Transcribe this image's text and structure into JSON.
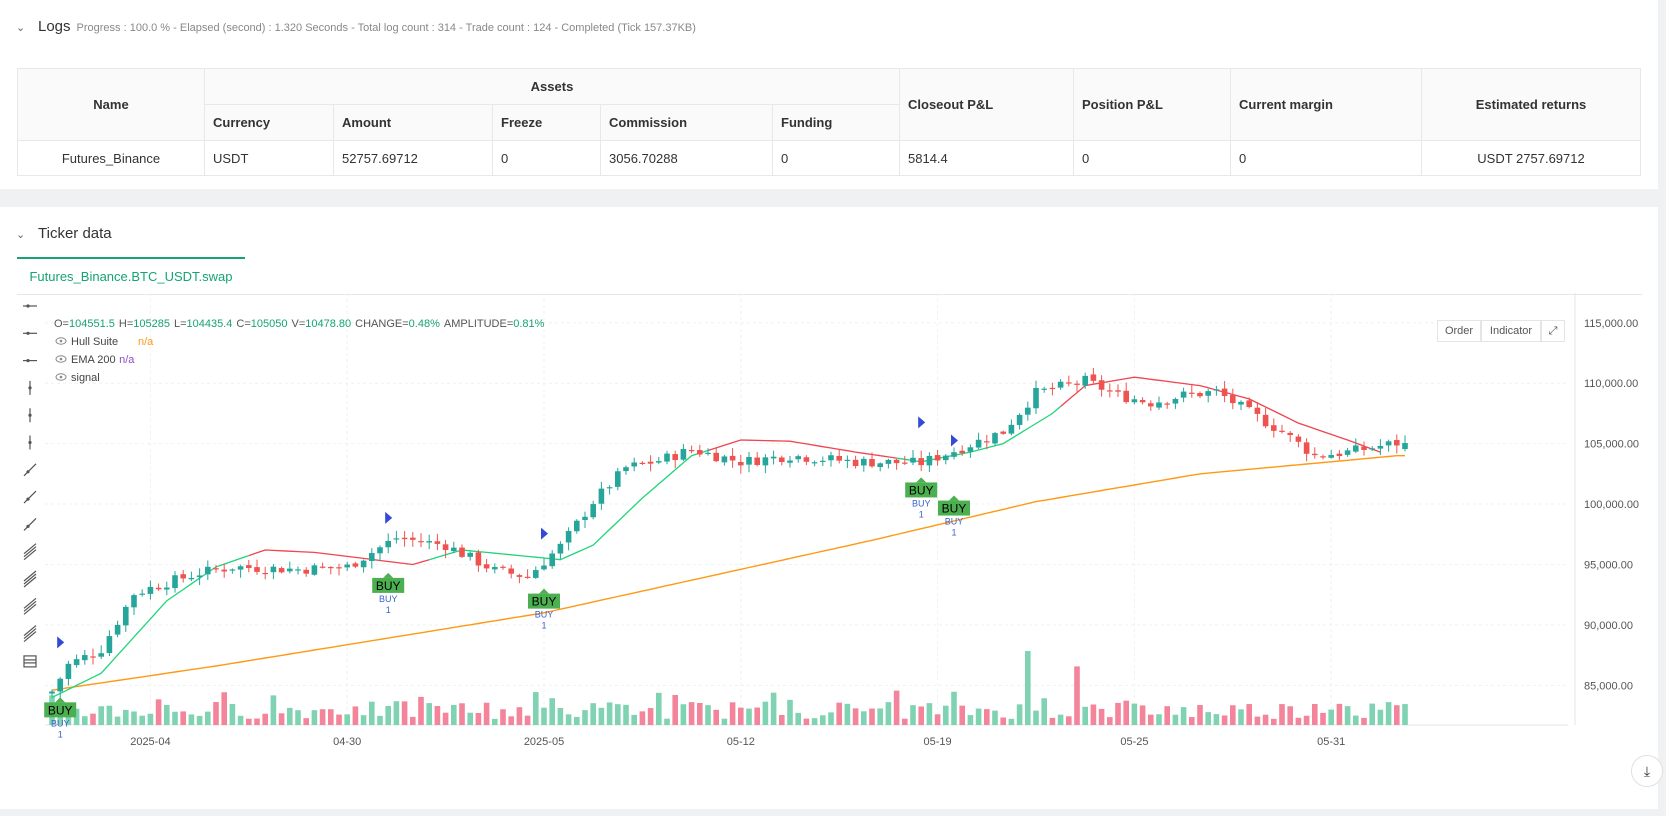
{
  "logs": {
    "title": "Logs",
    "summary": "Progress : 100.0 % - Elapsed (second) : 1.320   Seconds - Total log count : 314 - Trade count : 124 - Completed (Tick 157.37KB)"
  },
  "assets_table": {
    "headers": {
      "name": "Name",
      "assets": "Assets",
      "currency": "Currency",
      "amount": "Amount",
      "freeze": "Freeze",
      "commission": "Commission",
      "funding": "Funding",
      "closeout_pnl": "Closeout P&L",
      "position_pnl": "Position P&L",
      "current_margin": "Current margin",
      "estimated_returns": "Estimated returns"
    },
    "row": {
      "name": "Futures_Binance",
      "currency": "USDT",
      "amount": "52757.69712",
      "freeze": "0",
      "commission": "3056.70288",
      "funding": "0",
      "closeout_pnl": "5814.4",
      "position_pnl": "0",
      "current_margin": "0",
      "estimated_returns": "USDT 2757.69712"
    }
  },
  "ticker": {
    "title": "Ticker data",
    "tab": "Futures_Binance.BTC_USDT.swap",
    "order_button": "Order",
    "indicator_button": "Indicator"
  },
  "colors": {
    "accent": "#16a375",
    "up": "#26a69a",
    "down": "#ef5350",
    "hull_up": "#1fd47a",
    "hull_down": "#f0444e",
    "ema": "#ff9914",
    "volume_up": "#7fd3b2",
    "volume_down": "#f4849a",
    "buy_label": "#4caf50",
    "marker": "#3449d6"
  },
  "icons": [
    "expand-icon",
    "chevron-down-icon",
    "eye-icon",
    "scroll-down-icon",
    "line-tool-icon",
    "ray-tool-icon",
    "extended-line-icon",
    "vertical-line-icon",
    "vertical-ray-icon",
    "vertical-segment-icon",
    "trend-line-icon",
    "trend-ray-icon",
    "trend-segment-icon",
    "fib-icon",
    "parallel-channel-icon",
    "pitchfork-icon",
    "horizontal-lines-icon",
    "trash-icon"
  ],
  "chart_data": {
    "type": "candlestick",
    "symbol": "Futures_Binance.BTC_USDT.swap",
    "ohlc_readout": {
      "o_label": "O=",
      "o": "104551.5",
      "h_label": "H=",
      "h": "105285",
      "l_label": "L=",
      "l": "104435.4",
      "c_label": "C=",
      "c": "105050",
      "v_label": "V=",
      "v": "10478.80",
      "change_label": "CHANGE=",
      "change": "0.48%",
      "amplitude_label": "AMPLITUDE=",
      "amplitude": "0.81%"
    },
    "legend": [
      {
        "name": "Hull Suite",
        "value": "n/a"
      },
      {
        "name": "EMA 200",
        "value": "n/a"
      },
      {
        "name": "signal",
        "value": ""
      }
    ],
    "y_axis": {
      "range": [
        81800,
        117300
      ],
      "ticks": [
        85000,
        90000,
        95000,
        100000,
        105000,
        110000,
        115000
      ],
      "tick_labels": [
        "85,000.00",
        "90,000.00",
        "95,000.00",
        "100,000.00",
        "105,000.00",
        "110,000.00",
        "115,000.00"
      ]
    },
    "x_axis": {
      "bar_count": 166,
      "tick_labels": [
        {
          "bar": 12,
          "label": "2025-04"
        },
        {
          "bar": 36,
          "label": "04-30"
        },
        {
          "bar": 60,
          "label": "2025-05"
        },
        {
          "bar": 84,
          "label": "05-12"
        },
        {
          "bar": 108,
          "label": "05-19"
        },
        {
          "bar": 132,
          "label": "05-25"
        },
        {
          "bar": 156,
          "label": "05-31"
        }
      ]
    },
    "close_anchors": [
      [
        0,
        84500
      ],
      [
        2,
        86700
      ],
      [
        6,
        88000
      ],
      [
        10,
        92600
      ],
      [
        14,
        93500
      ],
      [
        18,
        94300
      ],
      [
        22,
        94800
      ],
      [
        30,
        94600
      ],
      [
        36,
        94800
      ],
      [
        42,
        97200
      ],
      [
        48,
        96600
      ],
      [
        54,
        94500
      ],
      [
        58,
        94000
      ],
      [
        62,
        96500
      ],
      [
        66,
        100200
      ],
      [
        70,
        103000
      ],
      [
        74,
        103600
      ],
      [
        78,
        104500
      ],
      [
        84,
        103500
      ],
      [
        90,
        104000
      ],
      [
        98,
        103500
      ],
      [
        106,
        103400
      ],
      [
        110,
        104400
      ],
      [
        116,
        106000
      ],
      [
        120,
        109200
      ],
      [
        126,
        110200
      ],
      [
        130,
        109000
      ],
      [
        134,
        108400
      ],
      [
        138,
        109000
      ],
      [
        142,
        109300
      ],
      [
        146,
        107600
      ],
      [
        150,
        106000
      ],
      [
        154,
        104000
      ],
      [
        158,
        104300
      ],
      [
        164,
        105050
      ]
    ],
    "hull_anchors": [
      [
        0,
        84000
      ],
      [
        6,
        86000
      ],
      [
        14,
        92000
      ],
      [
        20,
        94800
      ],
      [
        26,
        96200
      ],
      [
        32,
        96000
      ],
      [
        38,
        95500
      ],
      [
        44,
        95000
      ],
      [
        50,
        96200
      ],
      [
        56,
        95800
      ],
      [
        62,
        95400
      ],
      [
        66,
        96600
      ],
      [
        72,
        100500
      ],
      [
        78,
        104000
      ],
      [
        84,
        105300
      ],
      [
        90,
        105200
      ],
      [
        98,
        104300
      ],
      [
        106,
        103500
      ],
      [
        112,
        104300
      ],
      [
        116,
        105000
      ],
      [
        122,
        107500
      ],
      [
        126,
        109800
      ],
      [
        132,
        110500
      ],
      [
        140,
        109800
      ],
      [
        146,
        108700
      ],
      [
        152,
        106700
      ],
      [
        158,
        105300
      ],
      [
        162,
        104300
      ]
    ],
    "ema_anchors": [
      [
        0,
        84600
      ],
      [
        20,
        86600
      ],
      [
        40,
        88800
      ],
      [
        60,
        91000
      ],
      [
        80,
        94000
      ],
      [
        100,
        97000
      ],
      [
        120,
        100200
      ],
      [
        140,
        102500
      ],
      [
        164,
        104000
      ]
    ],
    "hull_color_down_from": [
      24,
      43,
      80,
      101,
      123
    ],
    "hull_color_up_from": [
      0,
      46,
      103
    ],
    "buy_signals": [
      {
        "bar": 1,
        "label": "BUY",
        "price": 84500,
        "text": "BUY",
        "count": "1"
      },
      {
        "bar": 41,
        "label": "BUY",
        "price": 94800,
        "text": "BUY",
        "count": "1"
      },
      {
        "bar": 60,
        "label": "BUY",
        "price": 93500,
        "text": "BUY",
        "count": "1"
      },
      {
        "bar": 106,
        "label": "BUY",
        "price": 102700,
        "text": "BUY",
        "count": "1"
      },
      {
        "bar": 110,
        "label": "BUY",
        "price": 101200,
        "text": "BUY",
        "count": "1"
      }
    ],
    "volume_spikes": [
      [
        119,
        3.0
      ],
      [
        125,
        2.3
      ],
      [
        103,
        1.2
      ],
      [
        76,
        1.0
      ],
      [
        74,
        1.1
      ]
    ]
  }
}
